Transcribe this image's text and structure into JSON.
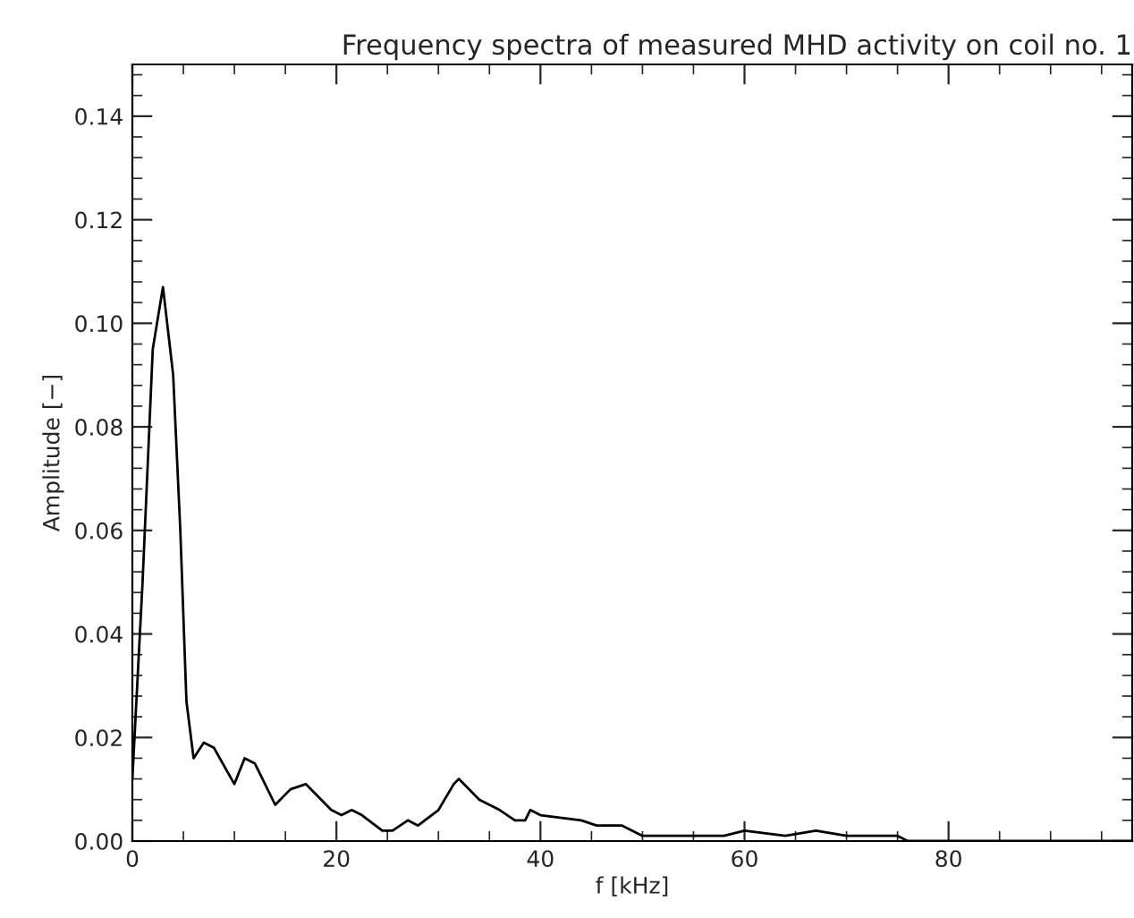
{
  "chart_data": {
    "type": "line",
    "title": "Frequency spectra of measured MHD activity on coil no. 1",
    "xlabel": "f [kHz]",
    "ylabel": "Amplitude [−]",
    "series": [
      {
        "color": "#000000",
        "x": [
          0,
          1,
          2,
          3,
          4,
          4.7,
          5.3,
          6,
          7,
          8,
          10,
          11,
          12,
          14,
          15.5,
          17,
          19.5,
          20.5,
          21.5,
          22.5,
          24.5,
          25.5,
          27,
          28,
          30,
          31.5,
          32,
          34,
          36,
          37.5,
          38.5,
          39,
          40,
          44,
          45.5,
          48,
          50,
          55,
          56,
          58,
          60,
          64,
          67,
          70,
          75,
          76,
          98
        ],
        "values": [
          0.012,
          0.05,
          0.095,
          0.107,
          0.09,
          0.06,
          0.027,
          0.016,
          0.019,
          0.018,
          0.011,
          0.016,
          0.015,
          0.007,
          0.01,
          0.011,
          0.006,
          0.005,
          0.006,
          0.005,
          0.002,
          0.002,
          0.004,
          0.003,
          0.006,
          0.011,
          0.012,
          0.008,
          0.006,
          0.004,
          0.004,
          0.006,
          0.005,
          0.004,
          0.003,
          0.003,
          0.001,
          0.001,
          0.001,
          0.001,
          0.002,
          0.001,
          0.002,
          0.001,
          0.001,
          0,
          0
        ]
      }
    ],
    "xlim": [
      0,
      98
    ],
    "ylim": [
      0,
      0.15
    ],
    "xticks": [
      0,
      20,
      40,
      60,
      80
    ],
    "yticks": [
      {
        "value": 0,
        "label": "0.00"
      },
      {
        "value": 0.02,
        "label": "0.02"
      },
      {
        "value": 0.04,
        "label": "0.04"
      },
      {
        "value": 0.06,
        "label": "0.06"
      },
      {
        "value": 0.08,
        "label": "0.08"
      },
      {
        "value": 0.1,
        "label": "0.10"
      },
      {
        "value": 0.12,
        "label": "0.12"
      },
      {
        "value": 0.14,
        "label": "0.14"
      }
    ],
    "grid": false,
    "legend": false,
    "marker": "none",
    "line_style": "solid"
  }
}
